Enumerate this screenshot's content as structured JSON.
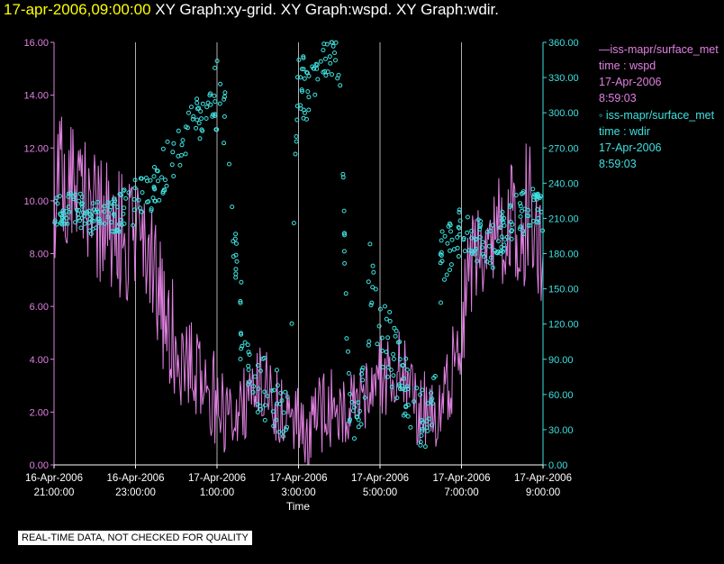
{
  "header": {
    "timestamp": "17-apr-2006,09:00:00",
    "title": " XY Graph:xy-grid.  XY Graph:wspd.  XY Graph:wdir."
  },
  "legend": [
    {
      "line1": "—iss-mapr/surface_met",
      "line2": "time : wspd",
      "line3": "17-Apr-2006",
      "line4": "8:59:03",
      "color": "#e080e0"
    },
    {
      "line1": "◦ iss-mapr/surface_met",
      "line2": "time : wdir",
      "line3": "17-Apr-2006",
      "line4": "8:59:03",
      "color": "#40e0e0"
    }
  ],
  "notice": "REAL-TIME DATA, NOT CHECKED FOR QUALITY",
  "chart_data": {
    "type": "line",
    "xlabel": "Time",
    "x_ticks": [
      {
        "hour": 0,
        "line1": "16-Apr-2006",
        "line2": "21:00:00"
      },
      {
        "hour": 2,
        "line1": "16-Apr-2006",
        "line2": "23:00:00"
      },
      {
        "hour": 4,
        "line1": "17-Apr-2006",
        "line2": "1:00:00"
      },
      {
        "hour": 6,
        "line1": "17-Apr-2006",
        "line2": "3:00:00"
      },
      {
        "hour": 8,
        "line1": "17-Apr-2006",
        "line2": "5:00:00"
      },
      {
        "hour": 10,
        "line1": "17-Apr-2006",
        "line2": "7:00:00"
      },
      {
        "hour": 12,
        "line1": "17-Apr-2006",
        "line2": "9:00:00"
      }
    ],
    "xlim": [
      0,
      12
    ],
    "grid_hours": [
      2,
      4,
      6,
      8,
      10,
      12
    ],
    "y_left": {
      "label": "wspd",
      "ylim": [
        0,
        16
      ],
      "ticks": [
        "0.00",
        "2.00",
        "4.00",
        "6.00",
        "8.00",
        "10.00",
        "12.00",
        "14.00",
        "16.00"
      ],
      "color": "#e080e0"
    },
    "y_right": {
      "label": "wdir",
      "ylim": [
        0,
        360
      ],
      "ticks": [
        "0.00",
        "30.00",
        "60.00",
        "90.00",
        "120.00",
        "150.00",
        "180.00",
        "210.00",
        "240.00",
        "270.00",
        "300.00",
        "330.00",
        "360.00"
      ],
      "color": "#40e0e0"
    },
    "series": [
      {
        "name": "wspd",
        "axis": "left",
        "style": "line",
        "color": "#e080e0",
        "x": [
          0,
          0.25,
          0.5,
          0.75,
          1,
          1.25,
          1.5,
          1.75,
          2,
          2.25,
          2.5,
          2.75,
          3,
          3.25,
          3.5,
          3.75,
          4,
          4.25,
          4.5,
          4.75,
          5,
          5.25,
          5.5,
          5.75,
          6,
          6.25,
          6.5,
          6.75,
          7,
          7.25,
          7.5,
          7.75,
          8,
          8.25,
          8.5,
          8.75,
          9,
          9.25,
          9.5,
          9.75,
          10,
          10.25,
          10.5,
          10.75,
          11,
          11.25,
          11.5,
          11.75,
          12
        ],
        "y": [
          10.5,
          10.8,
          10.2,
          9.8,
          9.5,
          9.2,
          8.8,
          8.5,
          9.0,
          8.0,
          7.0,
          5.5,
          4.5,
          3.8,
          3.5,
          3.0,
          2.5,
          1.5,
          2.0,
          2.5,
          3.0,
          2.8,
          2.0,
          1.8,
          1.5,
          1.2,
          1.8,
          2.2,
          2.0,
          1.8,
          2.5,
          3.0,
          3.5,
          3.2,
          3.8,
          2.5,
          2.0,
          2.2,
          1.8,
          3.5,
          5.5,
          7.5,
          8.5,
          9.0,
          8.8,
          9.2,
          9.5,
          10.0,
          9.0
        ],
        "noise": [
          3,
          2.5,
          2.5,
          2.5,
          2.5,
          2.5,
          2.5,
          2.5,
          2.5,
          2.5,
          2.5,
          2.5,
          2,
          2,
          2,
          2,
          2,
          1.5,
          1.5,
          1.5,
          1.5,
          1.5,
          1.5,
          1.5,
          1.5,
          1.5,
          1.5,
          1.5,
          1.5,
          1.5,
          1.5,
          1.5,
          1.5,
          1.5,
          1.5,
          1.5,
          1.5,
          1.5,
          1.5,
          1.8,
          2,
          2,
          2,
          2,
          2,
          2.5,
          3,
          3,
          3
        ]
      },
      {
        "name": "wdir",
        "axis": "right",
        "style": "scatter",
        "color": "#40e0e0",
        "x": [
          0,
          0.5,
          1,
          1.5,
          2,
          2.5,
          3,
          3.5,
          3.75,
          4,
          4.25,
          4.5,
          4.75,
          5,
          5.25,
          5.5,
          5.75,
          6,
          6.25,
          6.5,
          6.75,
          7,
          7.25,
          7.5,
          7.75,
          8,
          8.25,
          8.5,
          8.75,
          9,
          9.25,
          9.5,
          9.75,
          10,
          10.25,
          10.5,
          10.75,
          11,
          11.25,
          11.5,
          11.75,
          12
        ],
        "y": [
          215,
          220,
          210,
          212,
          225,
          240,
          270,
          295,
          300,
          315,
          285,
          135,
          90,
          70,
          60,
          55,
          45,
          330,
          320,
          340,
          345,
          350,
          45,
          30,
          150,
          120,
          100,
          80,
          50,
          40,
          35,
          170,
          185,
          200,
          195,
          190,
          185,
          200,
          210,
          215,
          220,
          212
        ],
        "spread": [
          12,
          15,
          15,
          15,
          20,
          20,
          20,
          20,
          20,
          30,
          30,
          40,
          35,
          30,
          30,
          30,
          30,
          30,
          30,
          20,
          20,
          20,
          30,
          30,
          40,
          35,
          35,
          30,
          25,
          25,
          25,
          30,
          25,
          20,
          20,
          20,
          20,
          20,
          20,
          20,
          20,
          15
        ]
      }
    ]
  }
}
